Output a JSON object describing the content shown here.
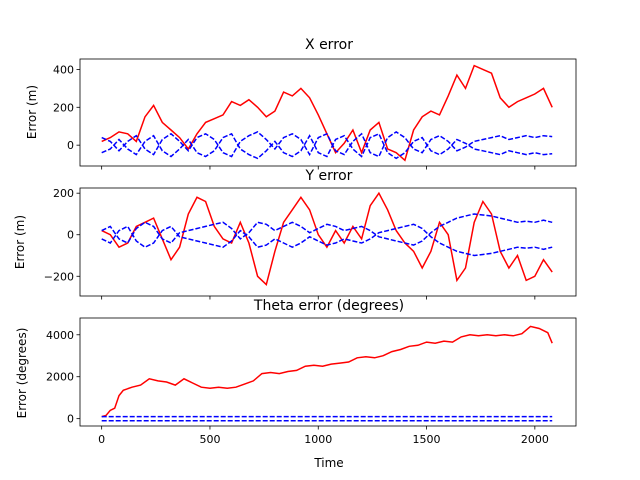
{
  "chart_data": [
    {
      "type": "line",
      "title": "X error",
      "xlabel": "",
      "ylabel": "Error (m)",
      "xlim": [
        -100,
        2190
      ],
      "ylim": [
        -110,
        455
      ],
      "xticks": [
        0,
        500,
        1000,
        1500,
        2000
      ],
      "yticks": [
        0,
        200,
        400
      ],
      "ytick_labels": [
        "0",
        "200",
        "400"
      ],
      "grid": false,
      "series": [
        {
          "style": "solid",
          "color": "#ff0000",
          "x": [
            0,
            40,
            80,
            120,
            160,
            200,
            240,
            280,
            320,
            360,
            400,
            440,
            480,
            520,
            560,
            600,
            640,
            680,
            720,
            760,
            800,
            840,
            880,
            920,
            960,
            1000,
            1040,
            1080,
            1120,
            1160,
            1200,
            1240,
            1280,
            1320,
            1360,
            1400,
            1440,
            1480,
            1520,
            1560,
            1600,
            1640,
            1680,
            1720,
            1760,
            1800,
            1840,
            1880,
            1920,
            1960,
            2000,
            2040,
            2080
          ],
          "y": [
            20,
            40,
            70,
            60,
            20,
            150,
            210,
            120,
            80,
            40,
            -20,
            60,
            120,
            140,
            160,
            230,
            210,
            240,
            200,
            150,
            180,
            280,
            260,
            300,
            250,
            160,
            60,
            -40,
            10,
            80,
            -40,
            80,
            120,
            -20,
            -40,
            -80,
            80,
            150,
            180,
            160,
            260,
            370,
            300,
            420,
            400,
            380,
            250,
            200,
            230,
            250,
            270,
            300,
            200
          ]
        },
        {
          "style": "dashed",
          "color": "#0000ff",
          "x": [
            0,
            40,
            80,
            120,
            160,
            200,
            240,
            280,
            320,
            360,
            400,
            440,
            480,
            520,
            560,
            600,
            640,
            680,
            720,
            760,
            800,
            840,
            880,
            920,
            960,
            1000,
            1040,
            1080,
            1120,
            1160,
            1200,
            1240,
            1280,
            1320,
            1360,
            1400,
            1440,
            1480,
            1520,
            1560,
            1600,
            1640,
            1680,
            1720,
            1760,
            1800,
            1840,
            1880,
            1920,
            1960,
            2000,
            2040,
            2080
          ],
          "y": [
            40,
            20,
            -30,
            20,
            50,
            -20,
            -50,
            30,
            60,
            20,
            -30,
            40,
            60,
            30,
            -40,
            -60,
            20,
            50,
            70,
            30,
            -20,
            40,
            60,
            30,
            -50,
            40,
            60,
            -30,
            -50,
            20,
            60,
            -40,
            -60,
            40,
            70,
            40,
            -20,
            -40,
            30,
            50,
            20,
            -30,
            -10,
            20,
            30,
            40,
            50,
            30,
            40,
            50,
            40,
            50,
            45
          ]
        },
        {
          "style": "dashed",
          "color": "#0000ff",
          "x": [
            0,
            40,
            80,
            120,
            160,
            200,
            240,
            280,
            320,
            360,
            400,
            440,
            480,
            520,
            560,
            600,
            640,
            680,
            720,
            760,
            800,
            840,
            880,
            920,
            960,
            1000,
            1040,
            1080,
            1120,
            1160,
            1200,
            1240,
            1280,
            1320,
            1360,
            1400,
            1440,
            1480,
            1520,
            1560,
            1600,
            1640,
            1680,
            1720,
            1760,
            1800,
            1840,
            1880,
            1920,
            1960,
            2000,
            2040,
            2080
          ],
          "y": [
            -40,
            -20,
            30,
            -20,
            -50,
            20,
            50,
            -30,
            -60,
            -20,
            30,
            -40,
            -60,
            -30,
            40,
            60,
            -20,
            -50,
            -70,
            -30,
            20,
            -40,
            -60,
            -30,
            50,
            -40,
            -60,
            30,
            50,
            -20,
            -60,
            40,
            60,
            -40,
            -70,
            -40,
            20,
            40,
            -30,
            -50,
            -20,
            30,
            10,
            -20,
            -30,
            -40,
            -50,
            -30,
            -40,
            -50,
            -40,
            -50,
            -45
          ]
        }
      ]
    },
    {
      "type": "line",
      "title": "Y error",
      "xlabel": "",
      "ylabel": "Error (m)",
      "xlim": [
        -100,
        2190
      ],
      "ylim": [
        -295,
        225
      ],
      "xticks": [
        0,
        500,
        1000,
        1500,
        2000
      ],
      "yticks": [
        -200,
        0,
        200
      ],
      "ytick_labels": [
        "−200",
        "0",
        "200"
      ],
      "grid": false,
      "series": [
        {
          "style": "solid",
          "color": "#ff0000",
          "x": [
            0,
            40,
            80,
            120,
            160,
            200,
            240,
            280,
            320,
            360,
            400,
            440,
            480,
            520,
            560,
            600,
            640,
            680,
            720,
            760,
            800,
            840,
            880,
            920,
            960,
            1000,
            1040,
            1080,
            1120,
            1160,
            1200,
            1240,
            1280,
            1320,
            1360,
            1400,
            1440,
            1480,
            1520,
            1560,
            1600,
            1640,
            1680,
            1720,
            1760,
            1800,
            1840,
            1880,
            1920,
            1960,
            2000,
            2040,
            2080
          ],
          "y": [
            20,
            0,
            -60,
            -40,
            40,
            60,
            80,
            -20,
            -120,
            -60,
            100,
            180,
            160,
            40,
            -20,
            -40,
            60,
            -40,
            -200,
            -240,
            -80,
            60,
            120,
            180,
            120,
            0,
            -60,
            20,
            -40,
            40,
            -20,
            140,
            200,
            120,
            20,
            -40,
            -80,
            -160,
            -80,
            60,
            0,
            -220,
            -160,
            60,
            160,
            100,
            -80,
            -160,
            -100,
            -220,
            -200,
            -120,
            -180
          ]
        },
        {
          "style": "dashed",
          "color": "#0000ff",
          "x": [
            0,
            40,
            80,
            120,
            160,
            200,
            240,
            280,
            320,
            360,
            400,
            440,
            480,
            520,
            560,
            600,
            640,
            680,
            720,
            760,
            800,
            840,
            880,
            920,
            960,
            1000,
            1040,
            1080,
            1120,
            1160,
            1200,
            1240,
            1280,
            1320,
            1360,
            1400,
            1440,
            1480,
            1520,
            1560,
            1600,
            1640,
            1680,
            1720,
            1760,
            1800,
            1840,
            1880,
            1920,
            1960,
            2000,
            2040,
            2080
          ],
          "y": [
            20,
            40,
            -20,
            -40,
            30,
            60,
            40,
            -20,
            -40,
            10,
            20,
            30,
            40,
            50,
            60,
            30,
            -20,
            10,
            60,
            50,
            20,
            40,
            60,
            40,
            10,
            30,
            50,
            40,
            20,
            30,
            40,
            20,
            -10,
            -20,
            -30,
            -40,
            -50,
            -30,
            10,
            40,
            60,
            80,
            90,
            100,
            95,
            90,
            80,
            70,
            60,
            65,
            60,
            70,
            60
          ]
        },
        {
          "style": "dashed",
          "color": "#0000ff",
          "x": [
            0,
            40,
            80,
            120,
            160,
            200,
            240,
            280,
            320,
            360,
            400,
            440,
            480,
            520,
            560,
            600,
            640,
            680,
            720,
            760,
            800,
            840,
            880,
            920,
            960,
            1000,
            1040,
            1080,
            1120,
            1160,
            1200,
            1240,
            1280,
            1320,
            1360,
            1400,
            1440,
            1480,
            1520,
            1560,
            1600,
            1640,
            1680,
            1720,
            1760,
            1800,
            1840,
            1880,
            1920,
            1960,
            2000,
            2040,
            2080
          ],
          "y": [
            -20,
            -40,
            20,
            40,
            -30,
            -60,
            -40,
            20,
            40,
            -10,
            -20,
            -30,
            -40,
            -50,
            -60,
            -30,
            20,
            -10,
            -60,
            -50,
            -20,
            -40,
            -60,
            -40,
            -10,
            -30,
            -50,
            -40,
            -20,
            -30,
            -40,
            -20,
            10,
            20,
            30,
            40,
            50,
            30,
            -10,
            -40,
            -60,
            -80,
            -90,
            -100,
            -95,
            -90,
            -80,
            -70,
            -60,
            -65,
            -60,
            -70,
            -60
          ]
        }
      ]
    },
    {
      "type": "line",
      "title": "Theta error (degrees)",
      "xlabel": "Time",
      "ylabel": "Error (degrees)",
      "xlim": [
        -100,
        2190
      ],
      "ylim": [
        -350,
        4800
      ],
      "xticks": [
        0,
        500,
        1000,
        1500,
        2000
      ],
      "xtick_labels": [
        "0",
        "500",
        "1000",
        "1500",
        "2000"
      ],
      "yticks": [
        0,
        2000,
        4000
      ],
      "ytick_labels": [
        "0",
        "2000",
        "4000"
      ],
      "grid": false,
      "series": [
        {
          "style": "solid",
          "color": "#ff0000",
          "x": [
            0,
            20,
            40,
            60,
            80,
            100,
            140,
            180,
            220,
            260,
            300,
            340,
            380,
            420,
            460,
            500,
            540,
            580,
            620,
            660,
            700,
            740,
            780,
            820,
            860,
            900,
            940,
            980,
            1020,
            1060,
            1100,
            1140,
            1180,
            1220,
            1260,
            1300,
            1340,
            1380,
            1420,
            1460,
            1500,
            1540,
            1580,
            1620,
            1660,
            1700,
            1740,
            1780,
            1820,
            1860,
            1900,
            1940,
            1980,
            2020,
            2060,
            2080
          ],
          "y": [
            100,
            150,
            400,
            500,
            1100,
            1350,
            1500,
            1600,
            1900,
            1800,
            1750,
            1600,
            1900,
            1700,
            1500,
            1450,
            1500,
            1450,
            1500,
            1650,
            1800,
            2150,
            2200,
            2150,
            2250,
            2300,
            2500,
            2550,
            2500,
            2600,
            2650,
            2700,
            2900,
            2950,
            2900,
            3000,
            3200,
            3300,
            3450,
            3500,
            3650,
            3600,
            3700,
            3650,
            3900,
            4000,
            3950,
            4000,
            3950,
            4000,
            3950,
            4050,
            4400,
            4300,
            4100,
            3600
          ]
        },
        {
          "style": "dashed",
          "color": "#0000ff",
          "x": [
            0,
            2080
          ],
          "y": [
            100,
            100
          ]
        },
        {
          "style": "dashed",
          "color": "#0000ff",
          "x": [
            0,
            2080
          ],
          "y": [
            -100,
            -100
          ]
        }
      ]
    }
  ]
}
